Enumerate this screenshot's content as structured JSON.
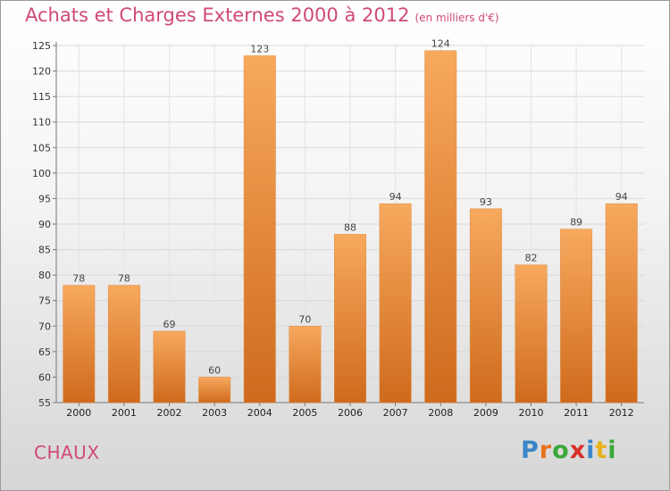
{
  "title": "Achats et Charges Externes 2000 à 2012",
  "unit_note": "(en milliers d'€)",
  "commune": "CHAUX",
  "logo": {
    "text": "Proxiti",
    "letters": [
      {
        "ch": "P",
        "color": "#3a86c8"
      },
      {
        "ch": "r",
        "color": "#e8731a"
      },
      {
        "ch": "o",
        "color": "#3aa83a"
      },
      {
        "ch": "x",
        "color": "#d8302a"
      },
      {
        "ch": "i",
        "color": "#3a86c8"
      },
      {
        "ch": "t",
        "color": "#e8b21a"
      },
      {
        "ch": "i",
        "color": "#3aa83a"
      }
    ]
  },
  "colors": {
    "bar_light": "#f7a95e",
    "bar_dark": "#cf6a1d",
    "title": "#d04a74"
  },
  "chart_data": {
    "type": "bar",
    "categories": [
      "2000",
      "2001",
      "2002",
      "2003",
      "2004",
      "2005",
      "2006",
      "2007",
      "2008",
      "2009",
      "2010",
      "2011",
      "2012"
    ],
    "values": [
      78,
      78,
      69,
      60,
      123,
      70,
      88,
      94,
      124,
      93,
      82,
      89,
      94
    ],
    "data_labels": [
      "78",
      "78",
      "69",
      "60",
      "123",
      "70",
      "88",
      "94",
      "124",
      "93",
      "82",
      "89",
      "94"
    ],
    "title": "Achats et Charges Externes 2000 à 2012",
    "xlabel": "",
    "ylabel": "",
    "ylim": [
      55,
      125
    ],
    "yticks": [
      55,
      60,
      65,
      70,
      75,
      80,
      85,
      90,
      95,
      100,
      105,
      110,
      115,
      120,
      125
    ],
    "grid": true
  }
}
